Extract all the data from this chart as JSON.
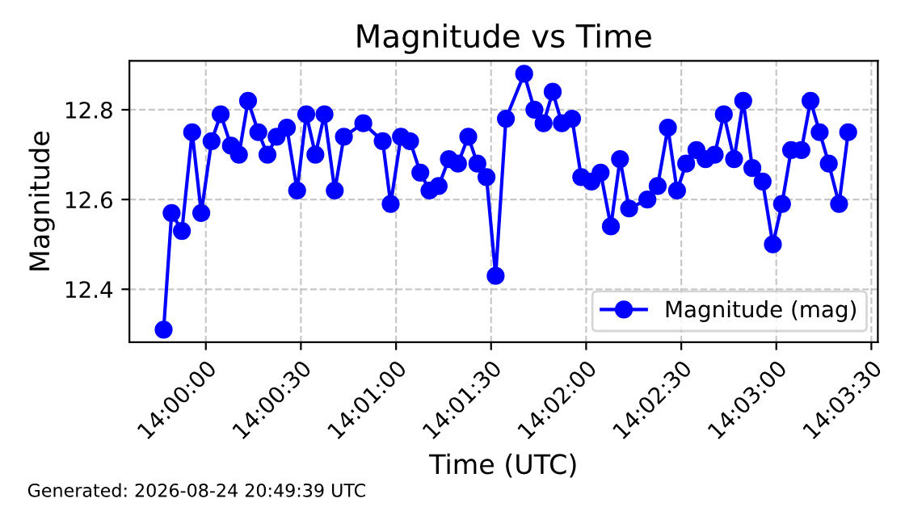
{
  "chart_data": {
    "type": "line",
    "title": "Magnitude vs Time",
    "xlabel": "Time (UTC)",
    "ylabel": "Magnitude",
    "annotations": [
      "Generated: 2026-08-24 20:49:39 UTC"
    ],
    "x": [
      13.9963,
      13.997,
      13.9979,
      13.9988,
      13.9996,
      14.0005,
      14.0013,
      14.0022,
      14.0029,
      14.0037,
      14.0046,
      14.0054,
      14.0062,
      14.0071,
      14.008,
      14.0088,
      14.0096,
      14.0104,
      14.0113,
      14.0121,
      14.0138,
      14.0155,
      14.0162,
      14.0171,
      14.0179,
      14.0188,
      14.0196,
      14.0204,
      14.0213,
      14.0221,
      14.023,
      14.0238,
      14.0246,
      14.0254,
      14.0263,
      14.0279,
      14.0288,
      14.0296,
      14.0304,
      14.0312,
      14.0321,
      14.0329,
      14.0338,
      14.0346,
      14.0355,
      14.0363,
      14.0371,
      14.0387,
      14.0396,
      14.0405,
      14.0413,
      14.0421,
      14.043,
      14.0438,
      14.0446,
      14.0454,
      14.0463,
      14.0471,
      14.0479,
      14.0488,
      14.0497,
      14.0505,
      14.0513,
      14.0522,
      14.053,
      14.0538,
      14.0546,
      14.0555,
      14.0563
    ],
    "series": [
      {
        "name": "Magnitude (mag)",
        "color": "#0000ff",
        "values": [
          12.31,
          12.57,
          12.53,
          12.75,
          12.57,
          12.73,
          12.79,
          12.72,
          12.7,
          12.82,
          12.75,
          12.7,
          12.74,
          12.76,
          12.62,
          12.79,
          12.7,
          12.79,
          12.62,
          12.74,
          12.77,
          12.73,
          12.59,
          12.74,
          12.73,
          12.66,
          12.62,
          12.63,
          12.69,
          12.68,
          12.74,
          12.68,
          12.65,
          12.43,
          12.78,
          12.88,
          12.8,
          12.77,
          12.84,
          12.77,
          12.78,
          12.65,
          12.64,
          12.66,
          12.54,
          12.69,
          12.58,
          12.6,
          12.63,
          12.76,
          12.62,
          12.68,
          12.71,
          12.69,
          12.7,
          12.79,
          12.69,
          12.82,
          12.67,
          12.64,
          12.5,
          12.59,
          12.71,
          12.71,
          12.82,
          12.75,
          12.68,
          12.59,
          12.75
        ]
      }
    ],
    "xlim": [
      13.9933,
      14.0589
    ],
    "xticks": [
      {
        "value": 14.0,
        "label": "14:00:00"
      },
      {
        "value": 14.00833,
        "label": "14:00:30"
      },
      {
        "value": 14.01667,
        "label": "14:01:00"
      },
      {
        "value": 14.025,
        "label": "14:01:30"
      },
      {
        "value": 14.03333,
        "label": "14:02:00"
      },
      {
        "value": 14.04167,
        "label": "14:02:30"
      },
      {
        "value": 14.05,
        "label": "14:03:00"
      },
      {
        "value": 14.05833,
        "label": "14:03:30"
      }
    ],
    "ylim": [
      12.282,
      12.909
    ],
    "yticks": [
      12.4,
      12.6,
      12.8
    ],
    "grid": true,
    "legend": "bottom right",
    "marker": "circle",
    "line_style": "solid"
  }
}
